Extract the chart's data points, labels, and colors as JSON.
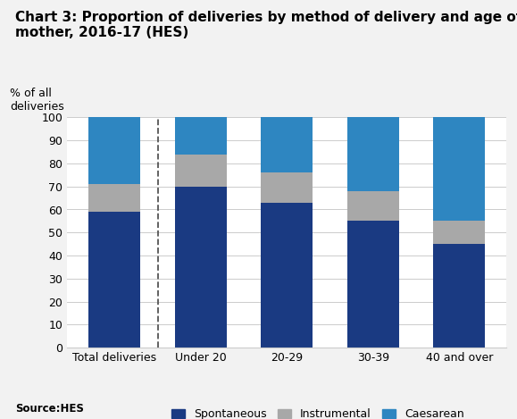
{
  "title_line1": "Chart 3: Proportion of deliveries by method of delivery and age of",
  "title_line2": "mother, 2016-17 (HES)",
  "ylabel": "% of all\ndeliveries",
  "source": "Source:HES",
  "categories": [
    "Total deliveries",
    "Under 20",
    "20-29",
    "30-39",
    "40 and over"
  ],
  "spontaneous": [
    59,
    70,
    63,
    55,
    45
  ],
  "instrumental": [
    12,
    14,
    13,
    13,
    10
  ],
  "caesarean": [
    29,
    16,
    24,
    32,
    45
  ],
  "colors": {
    "spontaneous": "#1a3a82",
    "instrumental": "#a8a8a8",
    "caesarean": "#2e86c1"
  },
  "legend_labels": [
    "Spontaneous",
    "Instrumental",
    "Caesarean"
  ],
  "ylim": [
    0,
    100
  ],
  "yticks": [
    0,
    10,
    20,
    30,
    40,
    50,
    60,
    70,
    80,
    90,
    100
  ],
  "background_color": "#f2f2f2",
  "plot_area_color": "#ffffff",
  "title_fontsize": 11,
  "ylabel_fontsize": 9,
  "tick_fontsize": 9,
  "legend_fontsize": 9,
  "source_fontsize": 8.5
}
